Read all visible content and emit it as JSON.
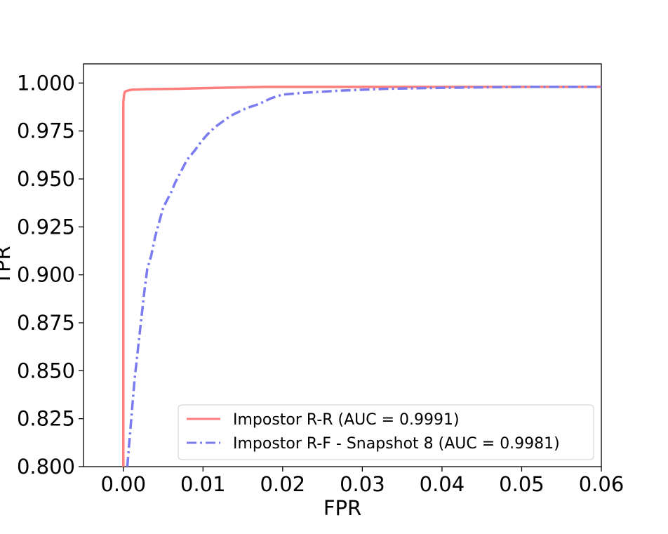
{
  "chart_data": {
    "type": "line",
    "title": "",
    "xlabel": "FPR",
    "ylabel": "TPR",
    "xlim": [
      -0.005,
      0.06
    ],
    "ylim": [
      0.8,
      1.01
    ],
    "xticks": [
      0.0,
      0.01,
      0.02,
      0.03,
      0.04,
      0.05,
      0.06
    ],
    "xtick_labels": [
      "0.00",
      "0.01",
      "0.02",
      "0.03",
      "0.04",
      "0.05",
      "0.06"
    ],
    "yticks": [
      0.8,
      0.825,
      0.85,
      0.875,
      0.9,
      0.925,
      0.95,
      0.975,
      1.0
    ],
    "ytick_labels": [
      "0.800",
      "0.825",
      "0.850",
      "0.875",
      "0.900",
      "0.925",
      "0.950",
      "0.975",
      "1.000"
    ],
    "grid": false,
    "legend_position": "lower-right",
    "series": [
      {
        "name": "Impostor R-R (AUC = 0.9991)",
        "color": "#ff7f7f",
        "style": "solid",
        "x": [
          0.0,
          0.0,
          0.0,
          0.0,
          0.0001,
          0.0002,
          0.0005,
          0.001,
          0.003,
          0.007,
          0.012,
          0.018,
          0.025,
          0.035,
          0.045,
          0.06
        ],
        "y": [
          0.8,
          0.95,
          0.987,
          0.99,
          0.994,
          0.9955,
          0.996,
          0.9965,
          0.9968,
          0.997,
          0.9975,
          0.998,
          0.998,
          0.998,
          0.998,
          0.998
        ]
      },
      {
        "name": "Impostor R-F - Snapshot 8 (AUC = 0.9981)",
        "color": "#7b7bf0",
        "style": "dashdot",
        "x": [
          0.0005,
          0.0008,
          0.0011,
          0.0014,
          0.0018,
          0.0022,
          0.0026,
          0.003,
          0.0035,
          0.004,
          0.005,
          0.006,
          0.0065,
          0.007,
          0.008,
          0.009,
          0.0095,
          0.0105,
          0.0115,
          0.0125,
          0.0135,
          0.0155,
          0.017,
          0.0185,
          0.02,
          0.023,
          0.027,
          0.033,
          0.04,
          0.05,
          0.06
        ],
        "y": [
          0.8,
          0.815,
          0.83,
          0.845,
          0.86,
          0.875,
          0.89,
          0.903,
          0.91,
          0.92,
          0.935,
          0.943,
          0.948,
          0.952,
          0.96,
          0.965,
          0.968,
          0.973,
          0.977,
          0.98,
          0.983,
          0.987,
          0.989,
          0.992,
          0.994,
          0.995,
          0.996,
          0.997,
          0.9975,
          0.998,
          0.998
        ]
      }
    ]
  }
}
